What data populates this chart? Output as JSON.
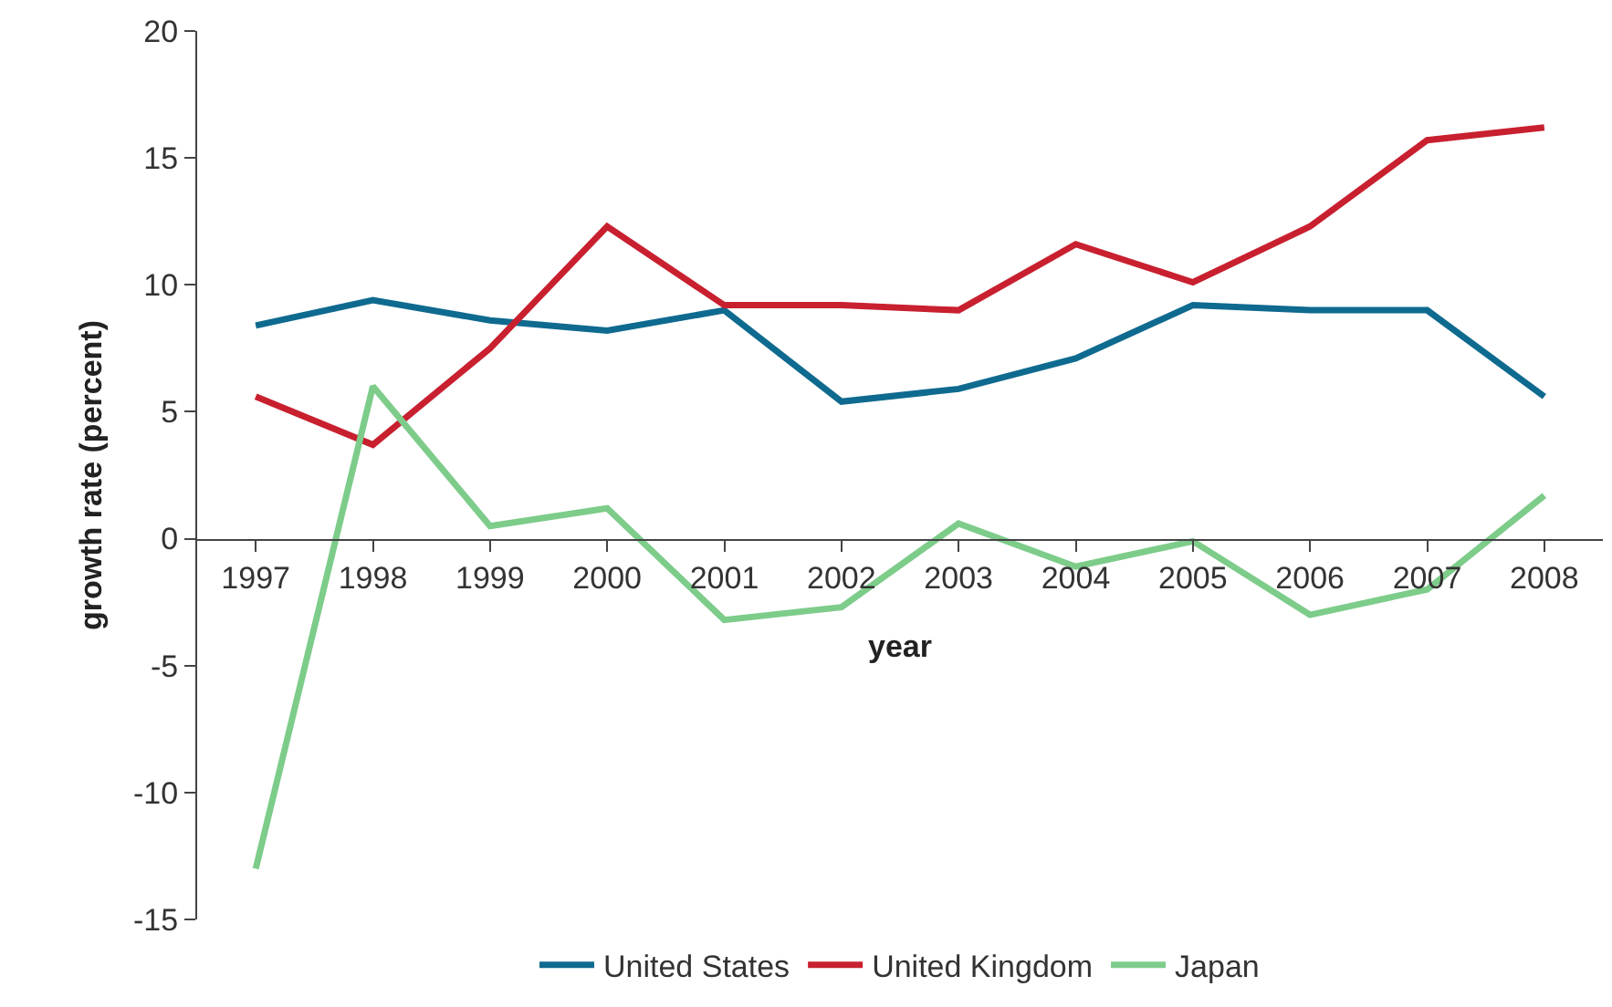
{
  "chart_data": {
    "type": "line",
    "xlabel": "year",
    "ylabel": "growth rate (percent)",
    "categories": [
      "1997",
      "1998",
      "1999",
      "2000",
      "2001",
      "2002",
      "2003",
      "2004",
      "2005",
      "2006",
      "2007",
      "2008"
    ],
    "series": [
      {
        "name": "United States",
        "color": "#0f6a8f",
        "values": [
          8.4,
          9.4,
          8.6,
          8.2,
          9.0,
          5.4,
          5.9,
          7.1,
          9.2,
          9.0,
          9.0,
          5.6
        ]
      },
      {
        "name": "United Kingdom",
        "color": "#c8202f",
        "values": [
          5.6,
          3.7,
          7.5,
          12.3,
          9.2,
          9.2,
          9.0,
          11.6,
          10.1,
          12.3,
          15.7,
          16.2
        ]
      },
      {
        "name": "Japan",
        "color": "#7dcc8a",
        "values": [
          -13.0,
          6.0,
          0.5,
          1.2,
          -3.2,
          -2.7,
          0.6,
          -1.1,
          -0.1,
          -3.0,
          -2.0,
          1.7
        ]
      }
    ],
    "ylim": [
      -15,
      20
    ],
    "yticks": [
      -15,
      -10,
      -5,
      0,
      5,
      10,
      15,
      20
    ],
    "grid": false,
    "legend": "bottom",
    "marker": "none",
    "line_style": "solid"
  }
}
